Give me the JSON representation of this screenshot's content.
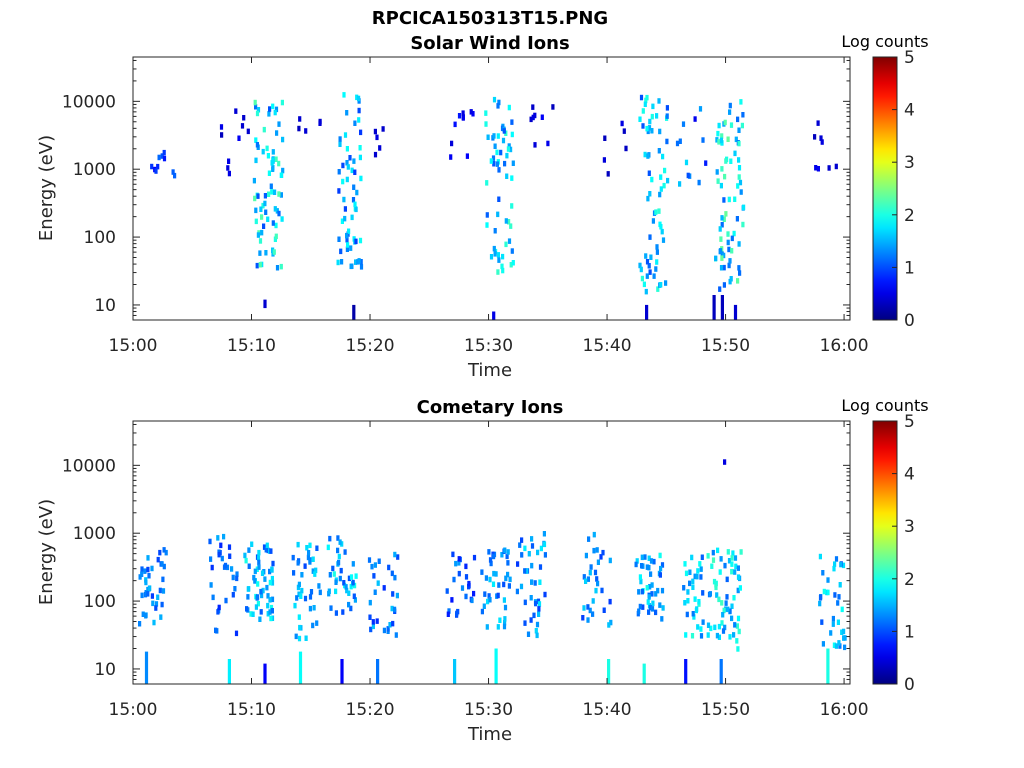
{
  "figure": {
    "filename_title": "RPCICA150313T15.PNG"
  },
  "chart_data": [
    {
      "type": "heatmap",
      "title": "Solar Wind Ions",
      "xlabel": "Time",
      "ylabel": "Energy (eV)",
      "x_ticks": [
        "15:00",
        "15:10",
        "15:20",
        "15:30",
        "15:40",
        "15:50",
        "16:00"
      ],
      "x_range_minutes": [
        0,
        60.5
      ],
      "y_scale": "log",
      "y_ticks": [
        "10",
        "100",
        "1000",
        "10000"
      ],
      "y_range": [
        6,
        45000
      ],
      "colorbar": {
        "label": "Log counts",
        "range": [
          0,
          5
        ],
        "ticks": [
          "0",
          "1",
          "2",
          "3",
          "4",
          "5"
        ],
        "colormap": "jet"
      },
      "bursts": [
        {
          "t": 2.5,
          "e0": 600,
          "e1": 2000,
          "n": 10,
          "v": 0.6,
          "hi": 1.2
        },
        {
          "t": 8.5,
          "e0": 450,
          "e1": 9000,
          "n": 10,
          "v": 0.3,
          "hi": 0.6
        },
        {
          "t": 11.3,
          "e0": 35,
          "e1": 10000,
          "n": 70,
          "v": 1.0,
          "hi": 2.3
        },
        {
          "t": 12.3,
          "e0": 800,
          "e1": 1400,
          "n": 6,
          "v": 1.6,
          "hi": 2.4
        },
        {
          "t": 15.0,
          "e0": 3000,
          "e1": 6000,
          "n": 5,
          "v": 0.3,
          "hi": 0.5
        },
        {
          "t": 18.0,
          "e0": 35,
          "e1": 14000,
          "n": 60,
          "v": 0.9,
          "hi": 2.0
        },
        {
          "t": 21.5,
          "e0": 1000,
          "e1": 4000,
          "n": 5,
          "v": 0.3,
          "hi": 0.5
        },
        {
          "t": 27.5,
          "e0": 1500,
          "e1": 8000,
          "n": 10,
          "v": 0.4,
          "hi": 0.8
        },
        {
          "t": 30.8,
          "e0": 30,
          "e1": 13000,
          "n": 60,
          "v": 1.0,
          "hi": 2.2
        },
        {
          "t": 34.5,
          "e0": 2000,
          "e1": 9000,
          "n": 8,
          "v": 0.3,
          "hi": 0.6
        },
        {
          "t": 40.5,
          "e0": 800,
          "e1": 6000,
          "n": 6,
          "v": 0.3,
          "hi": 0.5
        },
        {
          "t": 43.8,
          "e0": 15,
          "e1": 12000,
          "n": 65,
          "v": 1.0,
          "hi": 2.1
        },
        {
          "t": 47.0,
          "e0": 600,
          "e1": 9000,
          "n": 12,
          "v": 0.4,
          "hi": 1.8
        },
        {
          "t": 50.2,
          "e0": 15,
          "e1": 10000,
          "n": 75,
          "v": 1.1,
          "hi": 2.4
        },
        {
          "t": 58.5,
          "e0": 700,
          "e1": 6000,
          "n": 8,
          "v": 0.3,
          "hi": 0.6
        }
      ],
      "low_bars": [
        {
          "t": 11.0,
          "e0": 9,
          "e1": 12,
          "v": 0.4
        },
        {
          "t": 18.5,
          "e0": 6,
          "e1": 10,
          "v": 0.2
        },
        {
          "t": 30.3,
          "e0": 6,
          "e1": 8,
          "v": 0.5
        },
        {
          "t": 43.2,
          "e0": 6,
          "e1": 10,
          "v": 0.4
        },
        {
          "t": 48.9,
          "e0": 6,
          "e1": 14,
          "v": 0.3
        },
        {
          "t": 49.6,
          "e0": 6,
          "e1": 14,
          "v": 0.3
        },
        {
          "t": 50.7,
          "e0": 6,
          "e1": 10,
          "v": 0.4
        }
      ]
    },
    {
      "type": "heatmap",
      "title": "Cometary Ions",
      "xlabel": "Time",
      "ylabel": "Energy (eV)",
      "x_ticks": [
        "15:00",
        "15:10",
        "15:20",
        "15:30",
        "15:40",
        "15:50",
        "16:00"
      ],
      "x_range_minutes": [
        0,
        60.5
      ],
      "y_scale": "log",
      "y_ticks": [
        "10",
        "100",
        "1000",
        "10000"
      ],
      "y_range": [
        6,
        45000
      ],
      "colorbar": {
        "label": "Log counts",
        "range": [
          0,
          5
        ],
        "ticks": [
          "0",
          "1",
          "2",
          "3",
          "4",
          "5"
        ],
        "colormap": "jet"
      },
      "bursts": [
        {
          "t": 1.5,
          "e0": 40,
          "e1": 600,
          "n": 40,
          "v": 0.9,
          "hi": 1.6
        },
        {
          "t": 7.5,
          "e0": 30,
          "e1": 1100,
          "n": 30,
          "v": 0.8,
          "hi": 1.5
        },
        {
          "t": 10.5,
          "e0": 50,
          "e1": 700,
          "n": 60,
          "v": 1.0,
          "hi": 2.0
        },
        {
          "t": 14.5,
          "e0": 25,
          "e1": 800,
          "n": 40,
          "v": 0.9,
          "hi": 1.8
        },
        {
          "t": 17.5,
          "e0": 60,
          "e1": 900,
          "n": 40,
          "v": 1.0,
          "hi": 2.0
        },
        {
          "t": 21.0,
          "e0": 30,
          "e1": 500,
          "n": 30,
          "v": 0.8,
          "hi": 1.6
        },
        {
          "t": 27.5,
          "e0": 60,
          "e1": 500,
          "n": 25,
          "v": 0.7,
          "hi": 1.4
        },
        {
          "t": 30.5,
          "e0": 40,
          "e1": 600,
          "n": 40,
          "v": 0.9,
          "hi": 1.8
        },
        {
          "t": 33.5,
          "e0": 30,
          "e1": 1000,
          "n": 40,
          "v": 0.9,
          "hi": 1.8
        },
        {
          "t": 39.0,
          "e0": 40,
          "e1": 1000,
          "n": 30,
          "v": 0.9,
          "hi": 1.7
        },
        {
          "t": 43.5,
          "e0": 50,
          "e1": 500,
          "n": 45,
          "v": 1.0,
          "hi": 2.0
        },
        {
          "t": 47.5,
          "e0": 30,
          "e1": 500,
          "n": 40,
          "v": 1.0,
          "hi": 2.1
        },
        {
          "t": 50.0,
          "e0": 15,
          "e1": 600,
          "n": 55,
          "v": 1.1,
          "hi": 2.2
        },
        {
          "t": 50.8,
          "e0": 11000,
          "e1": 12500,
          "n": 1,
          "v": 0.4,
          "hi": 0.5
        },
        {
          "t": 59.0,
          "e0": 20,
          "e1": 500,
          "n": 35,
          "v": 1.0,
          "hi": 2.0
        }
      ],
      "low_bars": [
        {
          "t": 1.0,
          "e0": 6,
          "e1": 18,
          "v": 1.3
        },
        {
          "t": 8.0,
          "e0": 6,
          "e1": 14,
          "v": 1.8
        },
        {
          "t": 11.0,
          "e0": 6,
          "e1": 12,
          "v": 0.6
        },
        {
          "t": 14.0,
          "e0": 6,
          "e1": 18,
          "v": 1.9
        },
        {
          "t": 17.5,
          "e0": 6,
          "e1": 14,
          "v": 0.6
        },
        {
          "t": 20.5,
          "e0": 6,
          "e1": 14,
          "v": 1.2
        },
        {
          "t": 27.0,
          "e0": 6,
          "e1": 14,
          "v": 1.6
        },
        {
          "t": 30.5,
          "e0": 6,
          "e1": 20,
          "v": 1.9
        },
        {
          "t": 40.0,
          "e0": 6,
          "e1": 14,
          "v": 2.0
        },
        {
          "t": 43.0,
          "e0": 6,
          "e1": 12,
          "v": 2.0
        },
        {
          "t": 46.5,
          "e0": 6,
          "e1": 14,
          "v": 0.7
        },
        {
          "t": 49.5,
          "e0": 6,
          "e1": 14,
          "v": 1.2
        },
        {
          "t": 58.5,
          "e0": 6,
          "e1": 20,
          "v": 2.0
        }
      ]
    }
  ]
}
